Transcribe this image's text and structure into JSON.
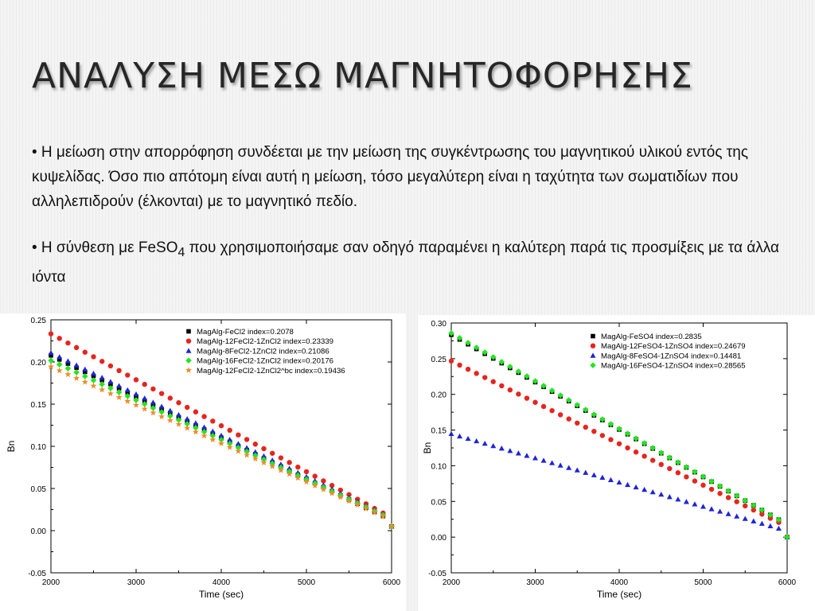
{
  "slide": {
    "title": "ΑΝΑΛΥΣΗ ΜΕΣΩ ΜΑΓΝΗΤΟΦΟΡΗΣΗΣ",
    "bullet1": "• Η μείωση στην απορρόφηση συνδέεται με την μείωση της συγκέντρωσης του μαγνητικού υλικού εντός της κυψελίδας. Όσο πιο απότομη είναι αυτή η μείωση, τόσο μεγαλύτερη είναι η ταχύτητα των σωματιδίων που αλληλεπιδρούν (έλκονται) με το μαγνητικό πεδίο.",
    "bullet2_before": "• Η σύνθεση με FeSO",
    "bullet2_sub": "4",
    "bullet2_after": " που χρησιμοποιήσαμε σαν οδηγό παραμένει η καλύτερη παρά τις προσμίξεις με τα άλλα ιόντα"
  },
  "chart_data": [
    {
      "type": "scatter",
      "title": "",
      "xlabel": "Time (sec)",
      "ylabel": "Bn",
      "xlim": [
        2000,
        6000
      ],
      "ylim": [
        -0.05,
        0.25
      ],
      "xticks": [
        2000,
        3000,
        4000,
        5000,
        6000
      ],
      "yticks": [
        -0.05,
        0.0,
        0.05,
        0.1,
        0.15,
        0.2,
        0.25
      ],
      "grid": false,
      "legend": "top-right",
      "x": [
        2000,
        2100,
        2200,
        2300,
        2400,
        2500,
        2600,
        2700,
        2800,
        2900,
        3000,
        3100,
        3200,
        3300,
        3400,
        3500,
        3600,
        3700,
        3800,
        3900,
        4000,
        4100,
        4200,
        4300,
        4400,
        4500,
        4600,
        4700,
        4800,
        4900,
        5000,
        5100,
        5200,
        5300,
        5400,
        5500,
        5600,
        5700,
        5800,
        5900,
        6000
      ],
      "series": [
        {
          "name": "MagAlg-FeCl2  index=0.2078",
          "marker": "square",
          "color": "#000000",
          "values": [
            0.2078,
            0.203,
            0.1981,
            0.1932,
            0.1883,
            0.1834,
            0.1785,
            0.1737,
            0.1688,
            0.1639,
            0.159,
            0.1541,
            0.1492,
            0.1443,
            0.1395,
            0.1346,
            0.1297,
            0.1248,
            0.1199,
            0.115,
            0.1102,
            0.1053,
            0.1004,
            0.0955,
            0.0906,
            0.0857,
            0.0808,
            0.076,
            0.0711,
            0.0662,
            0.0613,
            0.0564,
            0.0515,
            0.0467,
            0.0418,
            0.0369,
            0.032,
            0.0271,
            0.0222,
            0.0173,
            0.005
          ]
        },
        {
          "name": "MagAlg-12FeCl2-1ZnCl2  index=0.23339",
          "marker": "circle",
          "color": "#e8241c",
          "values": [
            0.2334,
            0.228,
            0.2225,
            0.2171,
            0.2116,
            0.2062,
            0.2007,
            0.1953,
            0.1898,
            0.1844,
            0.1789,
            0.1735,
            0.168,
            0.1626,
            0.1571,
            0.1517,
            0.1462,
            0.1408,
            0.1353,
            0.1299,
            0.1244,
            0.119,
            0.1135,
            0.1081,
            0.1026,
            0.0972,
            0.0917,
            0.0863,
            0.0808,
            0.0754,
            0.0699,
            0.0645,
            0.059,
            0.0536,
            0.0481,
            0.0427,
            0.0372,
            0.0318,
            0.0263,
            0.0209,
            0.005
          ]
        },
        {
          "name": "MagAlg-8FeCl2-1ZnCl2  index=0.21086",
          "marker": "triangle",
          "color": "#1f24d8",
          "values": [
            0.2109,
            0.206,
            0.2011,
            0.1962,
            0.1913,
            0.1864,
            0.1815,
            0.1766,
            0.1717,
            0.1668,
            0.1619,
            0.157,
            0.1521,
            0.1472,
            0.1423,
            0.1374,
            0.1325,
            0.1276,
            0.1227,
            0.1178,
            0.1129,
            0.108,
            0.1031,
            0.0982,
            0.0933,
            0.0884,
            0.0835,
            0.0786,
            0.0737,
            0.0688,
            0.0639,
            0.059,
            0.0541,
            0.0492,
            0.0443,
            0.0394,
            0.0345,
            0.0296,
            0.0247,
            0.0198,
            0.005
          ]
        },
        {
          "name": "MagAlg-16FeCl2-1ZnCl2  index=0.20176",
          "marker": "diamond",
          "color": "#22e61f",
          "values": [
            0.2018,
            0.1971,
            0.1924,
            0.1877,
            0.183,
            0.1783,
            0.1736,
            0.1689,
            0.1642,
            0.1595,
            0.1548,
            0.1501,
            0.1454,
            0.1407,
            0.136,
            0.1313,
            0.1266,
            0.1219,
            0.1172,
            0.1125,
            0.1078,
            0.1031,
            0.0984,
            0.0937,
            0.089,
            0.0843,
            0.0796,
            0.0749,
            0.0702,
            0.0655,
            0.0608,
            0.0561,
            0.0514,
            0.0467,
            0.042,
            0.0373,
            0.0326,
            0.0279,
            0.0232,
            0.0185,
            0.005
          ]
        },
        {
          "name": "MagAlg-12FeCl2-1ZnCl2^bc  index=0.19436",
          "marker": "star",
          "color": "#f08b2a",
          "values": [
            0.1944,
            0.1898,
            0.1853,
            0.1807,
            0.1762,
            0.1716,
            0.1671,
            0.1625,
            0.158,
            0.1534,
            0.1489,
            0.1443,
            0.1398,
            0.1352,
            0.1307,
            0.1261,
            0.1216,
            0.117,
            0.1125,
            0.1079,
            0.1034,
            0.0988,
            0.0943,
            0.0897,
            0.0852,
            0.0806,
            0.0761,
            0.0715,
            0.067,
            0.0624,
            0.0579,
            0.0533,
            0.0488,
            0.0442,
            0.0397,
            0.0351,
            0.0306,
            0.026,
            0.0215,
            0.0169,
            0.005
          ]
        }
      ]
    },
    {
      "type": "scatter",
      "title": "",
      "xlabel": "Time (sec)",
      "ylabel": "Bn",
      "xlim": [
        2000,
        6000
      ],
      "ylim": [
        -0.05,
        0.3
      ],
      "xticks": [
        2000,
        3000,
        4000,
        5000,
        6000
      ],
      "yticks": [
        -0.05,
        0.0,
        0.05,
        0.1,
        0.15,
        0.2,
        0.25,
        0.3
      ],
      "grid": false,
      "legend": "top-right",
      "x": [
        2000,
        2100,
        2200,
        2300,
        2400,
        2500,
        2600,
        2700,
        2800,
        2900,
        3000,
        3100,
        3200,
        3300,
        3400,
        3500,
        3600,
        3700,
        3800,
        3900,
        4000,
        4100,
        4200,
        4300,
        4400,
        4500,
        4600,
        4700,
        4800,
        4900,
        5000,
        5100,
        5200,
        5300,
        5400,
        5500,
        5600,
        5700,
        5800,
        5900,
        6000
      ],
      "series": [
        {
          "name": "MagAlg-FeSO4  index=0.2835",
          "marker": "square",
          "color": "#000000",
          "values": [
            0.2835,
            0.2769,
            0.2702,
            0.2636,
            0.2569,
            0.2503,
            0.2437,
            0.237,
            0.2304,
            0.2237,
            0.2171,
            0.2105,
            0.2038,
            0.1972,
            0.1905,
            0.1839,
            0.1773,
            0.1706,
            0.164,
            0.1573,
            0.1507,
            0.1441,
            0.1374,
            0.1308,
            0.1241,
            0.1175,
            0.1109,
            0.1042,
            0.0976,
            0.0909,
            0.0843,
            0.0777,
            0.071,
            0.0644,
            0.0577,
            0.0511,
            0.0445,
            0.0378,
            0.0312,
            0.0245,
            0.0
          ]
        },
        {
          "name": "MagAlg-12FeSO4-1ZnSO4  index=0.24679",
          "marker": "circle",
          "color": "#e8241c",
          "values": [
            0.2468,
            0.241,
            0.2352,
            0.2294,
            0.2236,
            0.2178,
            0.212,
            0.2062,
            0.2004,
            0.1946,
            0.1888,
            0.183,
            0.1772,
            0.1714,
            0.1656,
            0.1598,
            0.154,
            0.1482,
            0.1424,
            0.1366,
            0.1308,
            0.125,
            0.1192,
            0.1134,
            0.1076,
            0.1018,
            0.096,
            0.0902,
            0.0844,
            0.0786,
            0.0728,
            0.067,
            0.0612,
            0.0554,
            0.0496,
            0.0438,
            0.038,
            0.0322,
            0.0264,
            0.0206,
            0.0
          ]
        },
        {
          "name": "MagAlg-8FeSO4-1ZnSO4  index=0.14481",
          "marker": "triangle",
          "color": "#1f24d8",
          "values": [
            0.1448,
            0.1414,
            0.138,
            0.1346,
            0.1312,
            0.1278,
            0.1244,
            0.121,
            0.1176,
            0.1142,
            0.1108,
            0.1074,
            0.104,
            0.1006,
            0.0972,
            0.0938,
            0.0904,
            0.087,
            0.0836,
            0.0802,
            0.0768,
            0.0734,
            0.07,
            0.0666,
            0.0632,
            0.0598,
            0.0564,
            0.053,
            0.0496,
            0.0462,
            0.0428,
            0.0394,
            0.036,
            0.0326,
            0.0292,
            0.0258,
            0.0224,
            0.019,
            0.0156,
            0.0122,
            0.0
          ]
        },
        {
          "name": "MagAlg-16FeSO4-1ZnSO4  index=0.28565",
          "marker": "diamond",
          "color": "#22e61f",
          "values": [
            0.2857,
            0.279,
            0.2723,
            0.2656,
            0.2589,
            0.2522,
            0.2455,
            0.2388,
            0.2321,
            0.2254,
            0.2187,
            0.212,
            0.2053,
            0.1986,
            0.1919,
            0.1852,
            0.1785,
            0.1718,
            0.1651,
            0.1584,
            0.1517,
            0.145,
            0.1383,
            0.1316,
            0.1249,
            0.1182,
            0.1115,
            0.1048,
            0.0981,
            0.0914,
            0.0847,
            0.078,
            0.0713,
            0.0646,
            0.0579,
            0.0512,
            0.0445,
            0.0378,
            0.0311,
            0.0244,
            0.0
          ]
        }
      ]
    }
  ]
}
